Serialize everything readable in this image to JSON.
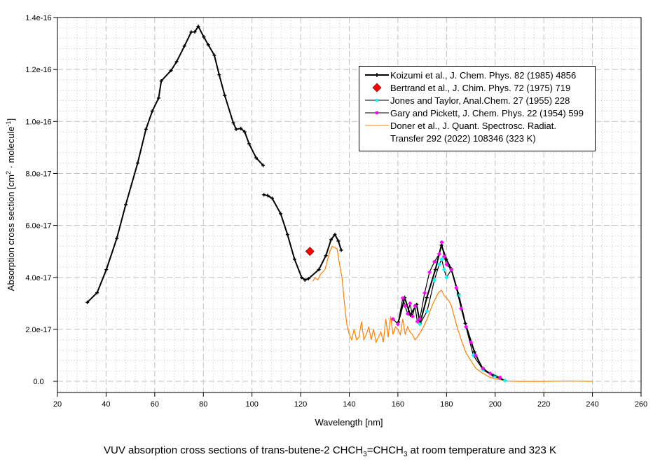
{
  "chart_data": {
    "type": "line",
    "title_parts": [
      "VUV absorption cross sections of trans-butene-2 CHCH",
      "3",
      "=CHCH",
      "3",
      " at room temperature and 323 K"
    ],
    "xlabel": "Wavelength [nm]",
    "ylabel_parts": [
      "Absorption cross section [cm",
      "2",
      " · molecule",
      "-1",
      "]"
    ],
    "xlim": [
      20,
      260
    ],
    "ylim": [
      -4.3e-18,
      1.4e-16
    ],
    "x_ticks": [
      20,
      40,
      60,
      80,
      100,
      120,
      140,
      160,
      180,
      200,
      220,
      240,
      260
    ],
    "y_ticks": [
      0,
      2e-17,
      4e-17,
      6e-17,
      8e-17,
      1e-16,
      1.2e-16,
      1.4e-16
    ],
    "y_tick_labels": [
      "0.0",
      "2.0e-17",
      "4.0e-17",
      "6.0e-17",
      "8.0e-17",
      "1.0e-16",
      "1.2e-16",
      "1.4e-16"
    ],
    "grid": true,
    "legend_position": "top-right",
    "series": [
      {
        "name": "Koizumi et al., J. Chem. Phys. 82 (1985) 4856",
        "color": "#000000",
        "marker": "cross",
        "segments": [
          [
            [
              32.3,
              3.04e-17
            ],
            [
              36.3,
              3.41e-17
            ],
            [
              40.1,
              4.3e-17
            ],
            [
              44.4,
              5.5e-17
            ],
            [
              48.1,
              6.8e-17
            ],
            [
              53,
              8.4e-17
            ],
            [
              56.4,
              9.7e-17
            ],
            [
              59,
              1.04e-16
            ],
            [
              61.6,
              1.09e-16
            ],
            [
              62.7,
              1.156e-16
            ],
            [
              66.7,
              1.196e-16
            ],
            [
              69,
              1.23e-16
            ],
            [
              72.2,
              1.29e-16
            ],
            [
              75,
              1.344e-16
            ],
            [
              76.5,
              1.345e-16
            ],
            [
              77.9,
              1.366e-16
            ],
            [
              80.2,
              1.325e-16
            ],
            [
              82,
              1.295e-16
            ],
            [
              84.5,
              1.255e-16
            ],
            [
              86.5,
              1.18e-16
            ],
            [
              88.8,
              1.1e-16
            ],
            [
              92.3,
              9.95e-17
            ],
            [
              93.5,
              9.7e-17
            ],
            [
              95.4,
              9.73e-17
            ],
            [
              97,
              9.6e-17
            ],
            [
              98.8,
              9.14e-17
            ],
            [
              101.7,
              8.6e-17
            ],
            [
              104.6,
              8.31e-17
            ]
          ],
          [
            [
              104.9,
              7.18e-17
            ],
            [
              106.5,
              7.15e-17
            ],
            [
              108.3,
              7.04e-17
            ],
            [
              111.8,
              6.45e-17
            ],
            [
              114.6,
              5.65e-17
            ],
            [
              117.5,
              4.7e-17
            ],
            [
              120.4,
              4e-17
            ],
            [
              121.8,
              3.9e-17
            ],
            [
              123.2,
              3.95e-17
            ],
            [
              127.5,
              4.3e-17
            ],
            [
              130.4,
              4.84e-17
            ],
            [
              132.5,
              5.45e-17
            ],
            [
              134.1,
              5.65e-17
            ],
            [
              135.5,
              5.4e-17
            ],
            [
              136.7,
              5.05e-17
            ]
          ],
          [
            [
              160.2,
              2.28e-17
            ],
            [
              162.8,
              3.22e-17
            ],
            [
              165.1,
              2.55e-17
            ],
            [
              167.7,
              2.96e-17
            ],
            [
              169.1,
              2.23e-17
            ],
            [
              171.9,
              3.22e-17
            ],
            [
              175.4,
              4.3e-17
            ],
            [
              177.9,
              5.24e-17
            ],
            [
              179.9,
              4.7e-17
            ],
            [
              181.9,
              4.33e-17
            ],
            [
              184.9,
              3.36e-17
            ],
            [
              187.7,
              2.23e-17
            ],
            [
              191.5,
              1.13e-17
            ],
            [
              194.9,
              4.6e-18
            ],
            [
              199.2,
              2.2e-18
            ],
            [
              204.1,
              3e-19
            ]
          ]
        ]
      },
      {
        "name": "Bertrand et al., J. Chim. Phys. 72 (1975) 719",
        "color": "#ff0000",
        "marker": "diamond",
        "segments": [
          [
            [
              123.8,
              5e-17
            ]
          ]
        ]
      },
      {
        "name": "Jones and Taylor, Anal.Chem. 27 (1955) 228",
        "color": "#00ffff",
        "marker": "cross",
        "segments": [
          [
            [
              169,
              2.2e-17
            ],
            [
              172,
              2.7e-17
            ],
            [
              175,
              3.9e-17
            ],
            [
              177,
              4.5e-17
            ],
            [
              178,
              4.7e-17
            ],
            [
              179,
              4.3e-17
            ],
            [
              180,
              4e-17
            ],
            [
              182,
              4.3e-17
            ],
            [
              185,
              3.3e-17
            ],
            [
              188,
              2.1e-17
            ],
            [
              191,
              1e-17
            ],
            [
              195,
              4.5e-18
            ],
            [
              200,
              2e-18
            ],
            [
              204,
              3e-19
            ]
          ]
        ]
      },
      {
        "name": "Gary and Pickett, J. Chem. Phys. 22 (1954) 599",
        "color": "#ff00ff",
        "marker": "cross",
        "segments": [
          [
            [
              158,
              2.4e-17
            ],
            [
              160,
              2.2e-17
            ],
            [
              162,
              3.2e-17
            ],
            [
              163,
              2.9e-17
            ],
            [
              164,
              2.6e-17
            ],
            [
              165,
              3e-17
            ],
            [
              166,
              2.5e-17
            ],
            [
              167,
              2.9e-17
            ],
            [
              168,
              2.3e-17
            ],
            [
              169,
              2.4e-17
            ],
            [
              171,
              3.4e-17
            ],
            [
              173,
              4.2e-17
            ],
            [
              175,
              4.6e-17
            ],
            [
              177,
              4.9e-17
            ],
            [
              178,
              5.35e-17
            ],
            [
              179,
              4.8e-17
            ],
            [
              180,
              4.5e-17
            ],
            [
              182,
              4.3e-17
            ],
            [
              184,
              3.6e-17
            ],
            [
              186,
              2.8e-17
            ],
            [
              188,
              2.1e-17
            ],
            [
              190,
              1.5e-17
            ],
            [
              192,
              1e-17
            ],
            [
              195,
              5e-18
            ],
            [
              198,
              3e-18
            ],
            [
              202,
              1.5e-18
            ]
          ]
        ]
      },
      {
        "name_lines": [
          "Doner et al., J. Quant. Spectrosc. Radiat.",
          "Transfer 292 (2022) 108346 (323 K)"
        ],
        "color": "#ff8000",
        "marker": "none",
        "segments": [
          [
            [
              125,
              3.85e-17
            ],
            [
              126,
              4e-17
            ],
            [
              127,
              3.9e-17
            ],
            [
              128,
              4.1e-17
            ],
            [
              130,
              4.3e-17
            ],
            [
              132,
              5e-17
            ],
            [
              133,
              5.2e-17
            ],
            [
              135,
              5.1e-17
            ],
            [
              136,
              4.5e-17
            ],
            [
              137,
              4e-17
            ],
            [
              138,
              3e-17
            ],
            [
              139,
              2.2e-17
            ],
            [
              140,
              1.8e-17
            ],
            [
              141,
              1.6e-17
            ],
            [
              142,
              2e-17
            ],
            [
              143,
              1.6e-17
            ],
            [
              144,
              1.7e-17
            ],
            [
              145,
              2.3e-17
            ],
            [
              146,
              1.6e-17
            ],
            [
              147,
              1.8e-17
            ],
            [
              148,
              2.1e-17
            ],
            [
              149,
              1.6e-17
            ],
            [
              150,
              2e-17
            ],
            [
              151,
              1.5e-17
            ],
            [
              152,
              1.7e-17
            ],
            [
              153,
              1.9e-17
            ],
            [
              154,
              1.5e-17
            ],
            [
              155,
              2.4e-17
            ],
            [
              156,
              1.7e-17
            ],
            [
              157,
              2.5e-17
            ],
            [
              158,
              1.8e-17
            ],
            [
              159,
              2.1e-17
            ],
            [
              160,
              2e-17
            ],
            [
              161,
              1.8e-17
            ],
            [
              162,
              2.4e-17
            ],
            [
              163,
              1.8e-17
            ],
            [
              164,
              2.1e-17
            ],
            [
              165,
              1.9e-17
            ],
            [
              166,
              1.8e-17
            ],
            [
              167,
              1.6e-17
            ],
            [
              168,
              1.7e-17
            ],
            [
              170,
              2e-17
            ],
            [
              172,
              2.4e-17
            ],
            [
              174,
              2.9e-17
            ],
            [
              176,
              3.3e-17
            ],
            [
              177,
              3.45e-17
            ],
            [
              178,
              3.5e-17
            ],
            [
              179,
              3.3e-17
            ],
            [
              180,
              3.2e-17
            ],
            [
              181,
              3.1e-17
            ],
            [
              182,
              2.9e-17
            ],
            [
              184,
              2.2e-17
            ],
            [
              186,
              1.6e-17
            ],
            [
              188,
              1.1e-17
            ],
            [
              190,
              8e-18
            ],
            [
              192,
              5e-18
            ],
            [
              195,
              3e-18
            ],
            [
              198,
              1.5e-18
            ],
            [
              200,
              1e-18
            ],
            [
              204,
              3e-19
            ],
            [
              205,
              1e-19
            ],
            [
              210,
              0
            ],
            [
              220,
              0
            ],
            [
              230,
              1e-19
            ],
            [
              240,
              0
            ]
          ]
        ]
      }
    ]
  }
}
